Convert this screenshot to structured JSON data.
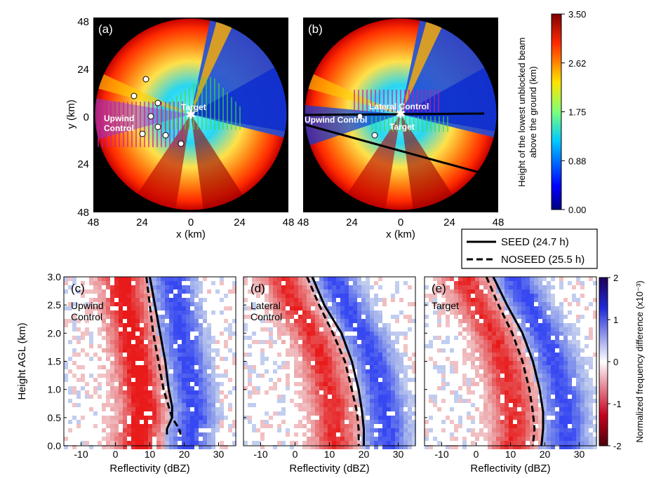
{
  "chart_data": [
    {
      "type": "heatmap",
      "panel": "(a)",
      "xlabel": "x (km)",
      "ylabel": "y (km)",
      "x_ticks": [
        "48",
        "24",
        "0",
        "24",
        "48"
      ],
      "y_ticks": [
        "48",
        "24",
        "0",
        "24",
        "48"
      ],
      "xlim": [
        -48,
        48
      ],
      "ylim": [
        -48,
        48
      ],
      "labels": [
        "Target",
        "Upwind\nControl"
      ]
    },
    {
      "type": "heatmap",
      "panel": "(b)",
      "xlabel": "x (km)",
      "x_ticks": [
        "48",
        "24",
        "0",
        "24",
        "48"
      ],
      "xlim": [
        -48,
        48
      ],
      "ylim": [
        -48,
        48
      ],
      "labels": [
        "Lateral Control",
        "Upwind Control",
        "Target"
      ]
    },
    {
      "type": "heatmap",
      "panel": "colorbar-top",
      "colorbar_label": "Height of the lowest unblocked beam above the ground (km)",
      "colorbar_ticks": [
        "3.50",
        "2.62",
        "1.75",
        "0.88",
        "0.00"
      ],
      "range": [
        0.0,
        3.5
      ]
    },
    {
      "type": "line",
      "legend": [
        {
          "name": "SEED (24.7 h)",
          "style": "solid"
        },
        {
          "name": "NOSEED (25.5 h)",
          "style": "dashed"
        }
      ]
    },
    {
      "type": "heatmap",
      "panel": "(c)",
      "title_inset": "Upwind\nControl",
      "xlabel": "Reflectivity (dBZ)",
      "ylabel": "Height AGL (km)",
      "x_ticks": [
        "-10",
        "0",
        "10",
        "20",
        "30"
      ],
      "y_ticks": [
        "0.0",
        "0.5",
        "1.0",
        "1.5",
        "2.0",
        "2.5",
        "3.0"
      ],
      "xlim": [
        -15,
        35
      ],
      "ylim": [
        0,
        3
      ],
      "series": [
        {
          "name": "SEED (24.7 h)",
          "x": [
            10.0,
            11.5,
            13.0,
            14.5,
            15.5,
            16.5,
            16.5,
            15.0,
            15.0
          ],
          "y": [
            3.0,
            2.5,
            2.0,
            1.5,
            1.0,
            0.7,
            0.5,
            0.3,
            0.2
          ]
        },
        {
          "name": "NOSEED (25.5 h)",
          "x": [
            9.0,
            10.0,
            11.0,
            12.5,
            14.0,
            15.5,
            16.5,
            18.5,
            19.0
          ],
          "y": [
            3.0,
            2.5,
            2.0,
            1.5,
            1.0,
            0.7,
            0.5,
            0.3,
            0.2
          ]
        }
      ]
    },
    {
      "type": "heatmap",
      "panel": "(d)",
      "title_inset": "Lateral\nControl",
      "xlabel": "Reflectivity (dBZ)",
      "x_ticks": [
        "-10",
        "0",
        "10",
        "20",
        "30"
      ],
      "xlim": [
        -15,
        35
      ],
      "ylim": [
        0,
        3
      ],
      "series": [
        {
          "name": "SEED (24.7 h)",
          "x": [
            5.0,
            8.5,
            13.5,
            16.5,
            18.5,
            19.5,
            20.0,
            20.0
          ],
          "y": [
            3.0,
            2.5,
            2.0,
            1.5,
            1.0,
            0.6,
            0.3,
            0.0
          ]
        },
        {
          "name": "NOSEED (25.5 h)",
          "x": [
            3.5,
            7.0,
            11.0,
            14.5,
            16.5,
            18.0,
            18.5,
            18.5
          ],
          "y": [
            3.0,
            2.5,
            2.0,
            1.5,
            1.0,
            0.6,
            0.3,
            0.0
          ]
        }
      ]
    },
    {
      "type": "heatmap",
      "panel": "(e)",
      "title_inset": "Target",
      "xlabel": "Reflectivity (dBZ)",
      "x_ticks": [
        "-10",
        "0",
        "10",
        "20",
        "30"
      ],
      "xlim": [
        -15,
        35
      ],
      "ylim": [
        0,
        3
      ],
      "series": [
        {
          "name": "SEED (24.7 h)",
          "x": [
            5.0,
            9.0,
            13.5,
            16.5,
            18.5,
            19.5,
            19.5,
            19.0
          ],
          "y": [
            3.0,
            2.5,
            2.0,
            1.5,
            1.0,
            0.6,
            0.3,
            0.0
          ]
        },
        {
          "name": "NOSEED (25.5 h)",
          "x": [
            3.0,
            6.5,
            10.5,
            13.5,
            15.5,
            16.5,
            17.0,
            16.5
          ],
          "y": [
            3.0,
            2.5,
            2.0,
            1.5,
            1.0,
            0.6,
            0.3,
            0.0
          ]
        }
      ]
    },
    {
      "type": "heatmap",
      "panel": "colorbar-bottom",
      "colorbar_label": "Normalized frequency difference (x10⁻³)",
      "colorbar_ticks": [
        "2",
        "1",
        "0",
        "-1",
        "-2"
      ],
      "range": [
        -2,
        2
      ]
    }
  ]
}
